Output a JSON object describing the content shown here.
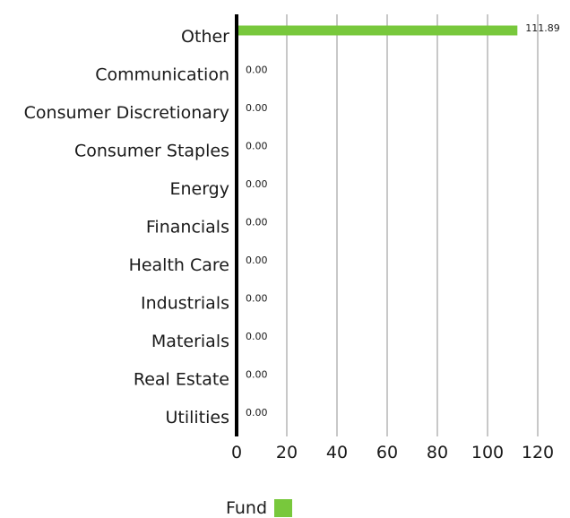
{
  "chart_data": {
    "type": "bar",
    "orientation": "horizontal",
    "categories": [
      "Other",
      "Communication",
      "Consumer Discretionary",
      "Consumer Staples",
      "Energy",
      "Financials",
      "Health Care",
      "Industrials",
      "Materials",
      "Real Estate",
      "Utilities"
    ],
    "series": [
      {
        "name": "Fund",
        "values": [
          111.89,
          0.0,
          0.0,
          0.0,
          0.0,
          0.0,
          0.0,
          0.0,
          0.0,
          0.0,
          0.0
        ],
        "labels": [
          "111.89",
          "0.00",
          "0.00",
          "0.00",
          "0.00",
          "0.00",
          "0.00",
          "0.00",
          "0.00",
          "0.00",
          "0.00"
        ],
        "color": "#78c83c"
      }
    ],
    "xlim": [
      0,
      120
    ],
    "xticks": [
      0,
      20,
      40,
      60,
      80,
      100,
      120
    ],
    "grid": true,
    "grid_color": "#c8c8c8",
    "axis_color": "#000000",
    "legend_position": "bottom"
  },
  "legend": {
    "label": "Fund",
    "color": "#78c83c"
  }
}
